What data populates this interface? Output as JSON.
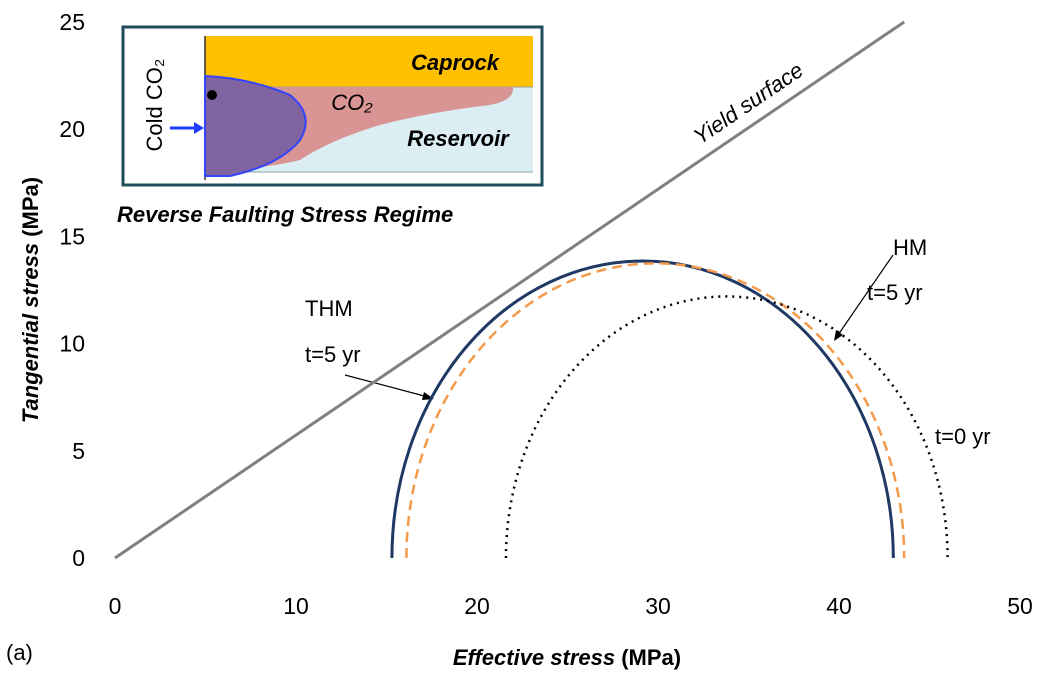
{
  "chart_data": {
    "type": "mohr",
    "x_label": "Effective stress",
    "x_unit": "(MPa)",
    "y_label": "Tangential stress",
    "y_unit": "(MPa)",
    "xlim": [
      0,
      50
    ],
    "xticks": [
      0,
      10,
      20,
      30,
      40,
      50
    ],
    "ylim": [
      0,
      25
    ],
    "yticks": [
      0,
      5,
      10,
      15,
      20,
      25
    ],
    "yield_line": {
      "name": "Yield surface",
      "color": "#808080",
      "x": [
        0,
        43.6
      ],
      "y": [
        0,
        25
      ]
    },
    "series": [
      {
        "lines": [
          "THM",
          "t=5 yr"
        ],
        "color": "#1f3864",
        "style": "solid",
        "sigma": [
          15.3,
          43.0
        ]
      },
      {
        "lines": [
          "HM",
          "t=5 yr"
        ],
        "color": "#f39a4b",
        "style": "dashed",
        "sigma": [
          16.1,
          43.6
        ]
      },
      {
        "lines": [
          "t=0 yr"
        ],
        "color": "#000000",
        "style": "dotted",
        "sigma": [
          21.6,
          46.0
        ]
      }
    ],
    "inset": {
      "caprock": "Caprock",
      "co2": "CO₂",
      "reservoir": "Reservoir",
      "injection": "Cold CO₂"
    },
    "regime": "Reverse Faulting Stress Regime",
    "panel": "(a)"
  }
}
